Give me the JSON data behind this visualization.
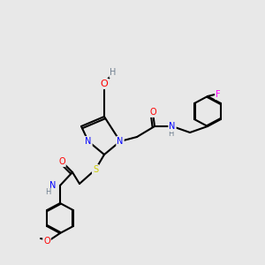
{
  "bg_color": "#e8e8e8",
  "bond_color": "#000000",
  "bond_width": 1.5,
  "atom_colors": {
    "C": "#000000",
    "N": "#0000ff",
    "O": "#ff0000",
    "S": "#cccc00",
    "F": "#ff00ff",
    "H": "#708090"
  },
  "font_size": 7,
  "figsize": [
    3.0,
    3.0
  ],
  "dpi": 100
}
